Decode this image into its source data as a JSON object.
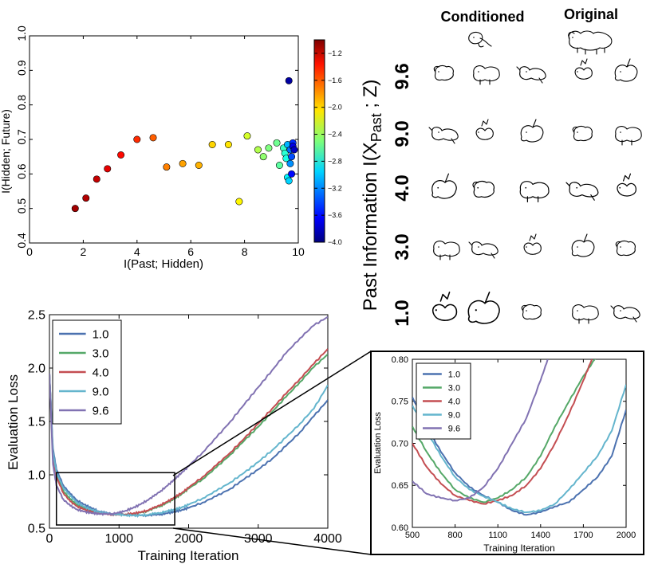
{
  "chart_data": [
    {
      "id": "scatter",
      "type": "scatter",
      "xlabel": "I(Past; Hidden)",
      "ylabel": "I(Hidden; Future)",
      "xlim": [
        0,
        10
      ],
      "ylim": [
        0.4,
        1.0
      ],
      "xticks": [
        0,
        2,
        4,
        6,
        8,
        10
      ],
      "yticks": [
        0.4,
        0.5,
        0.6,
        0.7,
        0.8,
        0.9,
        1.0
      ],
      "xtick_labels": [
        "0",
        "2",
        "4",
        "6",
        "8",
        "10"
      ],
      "ytick_labels": [
        "0.4",
        "0.5",
        "0.6",
        "0.7",
        "0.8",
        "0.9",
        "1.0"
      ],
      "colorbar": {
        "range": [
          -4.0,
          -1.0
        ],
        "ticks": [
          -1.2,
          -1.6,
          -2.0,
          -2.4,
          -2.8,
          -3.2,
          -3.6,
          -4.0
        ],
        "tick_labels": [
          "−1.2",
          "−1.6",
          "−2.0",
          "−2.4",
          "−2.8",
          "−3.2",
          "−3.6",
          "−4.0"
        ],
        "colormap": "jet"
      },
      "points": [
        {
          "x": 1.7,
          "y": 0.5,
          "c": -1.1
        },
        {
          "x": 2.1,
          "y": 0.53,
          "c": -1.15
        },
        {
          "x": 2.5,
          "y": 0.585,
          "c": -1.2
        },
        {
          "x": 2.9,
          "y": 0.615,
          "c": -1.3
        },
        {
          "x": 3.4,
          "y": 0.655,
          "c": -1.4
        },
        {
          "x": 4.0,
          "y": 0.7,
          "c": -1.5
        },
        {
          "x": 4.6,
          "y": 0.705,
          "c": -1.65
        },
        {
          "x": 5.1,
          "y": 0.62,
          "c": -1.75
        },
        {
          "x": 5.7,
          "y": 0.63,
          "c": -1.85
        },
        {
          "x": 6.3,
          "y": 0.625,
          "c": -1.9
        },
        {
          "x": 6.8,
          "y": 0.685,
          "c": -2.0
        },
        {
          "x": 7.4,
          "y": 0.685,
          "c": -2.05
        },
        {
          "x": 7.8,
          "y": 0.52,
          "c": -2.1
        },
        {
          "x": 8.1,
          "y": 0.71,
          "c": -2.25
        },
        {
          "x": 8.5,
          "y": 0.67,
          "c": -2.35
        },
        {
          "x": 8.7,
          "y": 0.65,
          "c": -2.45
        },
        {
          "x": 8.9,
          "y": 0.675,
          "c": -2.5
        },
        {
          "x": 9.2,
          "y": 0.69,
          "c": -2.55
        },
        {
          "x": 9.3,
          "y": 0.625,
          "c": -2.6
        },
        {
          "x": 9.45,
          "y": 0.675,
          "c": -2.7
        },
        {
          "x": 9.5,
          "y": 0.66,
          "c": -2.75
        },
        {
          "x": 9.55,
          "y": 0.645,
          "c": -2.8
        },
        {
          "x": 9.6,
          "y": 0.59,
          "c": -2.9
        },
        {
          "x": 9.65,
          "y": 0.58,
          "c": -3.0
        },
        {
          "x": 9.6,
          "y": 0.685,
          "c": -3.1
        },
        {
          "x": 9.7,
          "y": 0.63,
          "c": -3.2
        },
        {
          "x": 9.7,
          "y": 0.67,
          "c": -3.3
        },
        {
          "x": 9.75,
          "y": 0.65,
          "c": -3.4
        },
        {
          "x": 9.8,
          "y": 0.69,
          "c": -3.5
        },
        {
          "x": 9.75,
          "y": 0.6,
          "c": -3.6
        },
        {
          "x": 9.8,
          "y": 0.68,
          "c": -3.7
        },
        {
          "x": 9.85,
          "y": 0.67,
          "c": -3.8
        },
        {
          "x": 9.65,
          "y": 0.87,
          "c": -3.9
        }
      ]
    },
    {
      "id": "loss-main",
      "type": "line",
      "xlabel": "Training Iteration",
      "ylabel": "Evaluation Loss",
      "xlim": [
        0,
        4000
      ],
      "ylim": [
        0.5,
        2.5
      ],
      "xticks": [
        0,
        1000,
        2000,
        3000,
        4000
      ],
      "xtick_labels": [
        "0",
        "1000",
        "2000",
        "3000",
        "4000"
      ],
      "yticks": [
        0.5,
        1.0,
        1.5,
        2.0,
        2.5
      ],
      "ytick_labels": [
        "0.5",
        "1.0",
        "1.5",
        "2.0",
        "2.5"
      ],
      "zoom_box": {
        "x": [
          100,
          1800
        ],
        "y": [
          0.53,
          1.02
        ]
      },
      "series": [
        {
          "name": "1.0",
          "color": "#4c72b0",
          "x": [
            0,
            50,
            100,
            200,
            300,
            400,
            500,
            600,
            700,
            800,
            900,
            1000,
            1100,
            1200,
            1300,
            1400,
            1500,
            1600,
            1700,
            1800,
            1900,
            2000,
            2200,
            2400,
            2600,
            2800,
            3000,
            3200,
            3400,
            3600,
            3800,
            4000
          ],
          "y": [
            1.95,
            1.25,
            1.05,
            0.9,
            0.82,
            0.76,
            0.72,
            0.69,
            0.66,
            0.645,
            0.635,
            0.63,
            0.625,
            0.62,
            0.62,
            0.62,
            0.625,
            0.63,
            0.64,
            0.655,
            0.67,
            0.69,
            0.74,
            0.8,
            0.87,
            0.96,
            1.05,
            1.15,
            1.27,
            1.4,
            1.55,
            1.7
          ]
        },
        {
          "name": "3.0",
          "color": "#55a868",
          "x": [
            0,
            50,
            100,
            200,
            300,
            400,
            500,
            600,
            700,
            800,
            900,
            1000,
            1100,
            1200,
            1300,
            1400,
            1500,
            1600,
            1700,
            1800,
            1900,
            2000,
            2200,
            2400,
            2600,
            2800,
            3000,
            3200,
            3400,
            3600,
            3800,
            4000
          ],
          "y": [
            1.95,
            1.2,
            1.0,
            0.85,
            0.77,
            0.72,
            0.69,
            0.665,
            0.645,
            0.635,
            0.63,
            0.625,
            0.63,
            0.635,
            0.645,
            0.66,
            0.685,
            0.71,
            0.74,
            0.78,
            0.82,
            0.87,
            0.96,
            1.07,
            1.19,
            1.32,
            1.45,
            1.59,
            1.73,
            1.87,
            2.01,
            2.13
          ]
        },
        {
          "name": "4.0",
          "color": "#c44e52",
          "x": [
            0,
            50,
            100,
            200,
            300,
            400,
            500,
            600,
            700,
            800,
            900,
            1000,
            1100,
            1200,
            1300,
            1400,
            1500,
            1600,
            1700,
            1800,
            1900,
            2000,
            2200,
            2400,
            2600,
            2800,
            3000,
            3200,
            3400,
            3600,
            3800,
            4000
          ],
          "y": [
            1.95,
            1.18,
            0.98,
            0.83,
            0.75,
            0.705,
            0.675,
            0.655,
            0.64,
            0.632,
            0.628,
            0.625,
            0.63,
            0.637,
            0.648,
            0.665,
            0.69,
            0.72,
            0.75,
            0.79,
            0.83,
            0.88,
            0.98,
            1.09,
            1.21,
            1.34,
            1.48,
            1.62,
            1.76,
            1.9,
            2.04,
            2.18
          ]
        },
        {
          "name": "9.0",
          "color": "#64b5cd",
          "x": [
            0,
            50,
            100,
            200,
            300,
            400,
            500,
            600,
            700,
            800,
            900,
            1000,
            1100,
            1200,
            1300,
            1400,
            1500,
            1600,
            1700,
            1800,
            1900,
            2000,
            2200,
            2400,
            2600,
            2800,
            3000,
            3200,
            3400,
            3600,
            3800,
            4000
          ],
          "y": [
            1.95,
            1.22,
            1.02,
            0.88,
            0.8,
            0.74,
            0.7,
            0.675,
            0.655,
            0.64,
            0.632,
            0.627,
            0.622,
            0.62,
            0.62,
            0.625,
            0.635,
            0.645,
            0.66,
            0.675,
            0.695,
            0.72,
            0.78,
            0.85,
            0.93,
            1.02,
            1.12,
            1.23,
            1.35,
            1.48,
            1.62,
            1.84
          ]
        },
        {
          "name": "9.6",
          "color": "#8172b2",
          "x": [
            0,
            50,
            100,
            200,
            300,
            400,
            500,
            600,
            700,
            800,
            900,
            1000,
            1100,
            1200,
            1300,
            1400,
            1500,
            1600,
            1700,
            1800,
            1900,
            2000,
            2200,
            2400,
            2600,
            2800,
            3000,
            3200,
            3400,
            3600,
            3800,
            4000
          ],
          "y": [
            1.95,
            1.1,
            0.9,
            0.77,
            0.71,
            0.675,
            0.655,
            0.642,
            0.635,
            0.632,
            0.635,
            0.645,
            0.665,
            0.69,
            0.72,
            0.76,
            0.8,
            0.85,
            0.9,
            0.96,
            1.02,
            1.08,
            1.21,
            1.35,
            1.5,
            1.66,
            1.82,
            1.98,
            2.14,
            2.28,
            2.4,
            2.48
          ]
        }
      ]
    },
    {
      "id": "loss-zoom",
      "type": "line",
      "xlabel": "Training Iteration",
      "ylabel": "Evaluation Loss",
      "xlim": [
        500,
        2000
      ],
      "ylim": [
        0.6,
        0.8
      ],
      "xticks": [
        500,
        800,
        1100,
        1400,
        1700,
        2000
      ],
      "xtick_labels": [
        "500",
        "800",
        "1100",
        "1400",
        "1700",
        "2000"
      ],
      "yticks": [
        0.6,
        0.65,
        0.7,
        0.75,
        0.8
      ],
      "ytick_labels": [
        "0.60",
        "0.65",
        "0.70",
        "0.75",
        "0.80"
      ],
      "series": [
        {
          "name": "1.0",
          "color": "#4c72b0",
          "x": [
            500,
            600,
            700,
            800,
            900,
            1000,
            1100,
            1200,
            1300,
            1400,
            1500,
            1600,
            1700,
            1800,
            1900,
            2000
          ],
          "y": [
            0.755,
            0.72,
            0.69,
            0.665,
            0.648,
            0.638,
            0.63,
            0.62,
            0.615,
            0.618,
            0.625,
            0.63,
            0.645,
            0.66,
            0.685,
            0.74
          ]
        },
        {
          "name": "3.0",
          "color": "#55a868",
          "x": [
            500,
            600,
            700,
            800,
            900,
            1000,
            1100,
            1200,
            1300,
            1400,
            1500,
            1600,
            1700,
            1800
          ],
          "y": [
            0.72,
            0.69,
            0.665,
            0.645,
            0.635,
            0.63,
            0.635,
            0.645,
            0.66,
            0.685,
            0.72,
            0.75,
            0.78,
            0.805
          ]
        },
        {
          "name": "4.0",
          "color": "#c44e52",
          "x": [
            500,
            600,
            700,
            800,
            900,
            1000,
            1100,
            1200,
            1300,
            1400,
            1500,
            1600,
            1700,
            1760
          ],
          "y": [
            0.7,
            0.672,
            0.652,
            0.638,
            0.632,
            0.628,
            0.632,
            0.638,
            0.65,
            0.67,
            0.7,
            0.735,
            0.775,
            0.8
          ]
        },
        {
          "name": "9.0",
          "color": "#64b5cd",
          "x": [
            500,
            600,
            700,
            800,
            900,
            1000,
            1100,
            1200,
            1300,
            1400,
            1500,
            1600,
            1700,
            1800,
            1900,
            2000
          ],
          "y": [
            0.745,
            0.715,
            0.685,
            0.66,
            0.645,
            0.637,
            0.63,
            0.622,
            0.618,
            0.62,
            0.628,
            0.645,
            0.665,
            0.685,
            0.715,
            0.77
          ]
        },
        {
          "name": "9.6",
          "color": "#8172b2",
          "x": [
            500,
            600,
            700,
            800,
            900,
            1000,
            1100,
            1200,
            1300,
            1400,
            1450
          ],
          "y": [
            0.655,
            0.64,
            0.635,
            0.632,
            0.635,
            0.648,
            0.67,
            0.7,
            0.73,
            0.775,
            0.8
          ]
        }
      ]
    }
  ],
  "sketch_panel": {
    "header_conditioned": "Conditioned",
    "header_original": "Original",
    "side_label_main": "Past Information I(X",
    "side_label_sub": "Past",
    "side_label_end": " ; Z)",
    "row_labels": [
      "9.6",
      "9.0",
      "4.0",
      "3.0",
      "1.0"
    ]
  }
}
